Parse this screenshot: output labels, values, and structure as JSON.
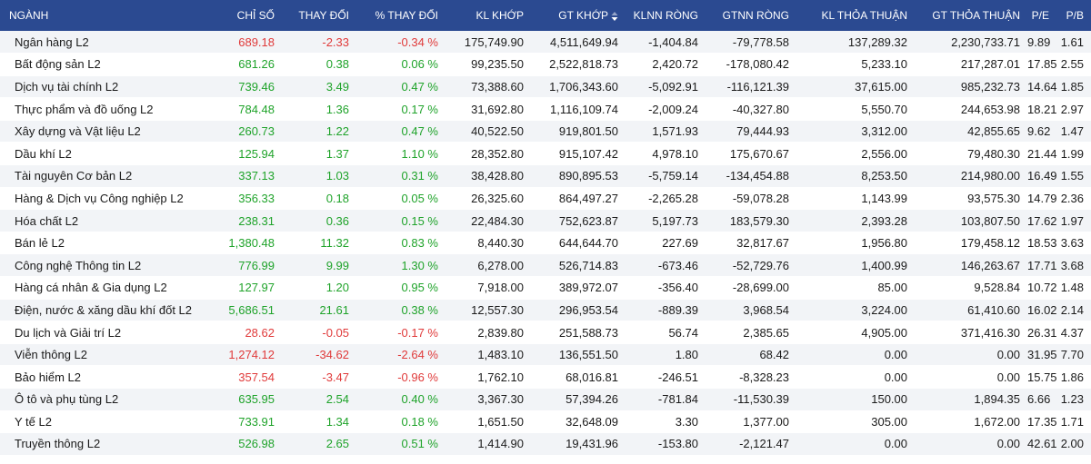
{
  "table": {
    "headers": [
      "NGÀNH",
      "CHỈ SỐ",
      "THAY ĐỔI",
      "% THAY ĐỔI",
      "KL KHỚP",
      "GT KHỚP",
      "KLNN RÒNG",
      "GTNN RÒNG",
      "KL THỎA THUẬN",
      "GT THỎA THUẬN",
      "P/E",
      "P/B"
    ],
    "sort_icon": "sort-desc-icon",
    "colors": {
      "header_bg": "#2b4a91",
      "up": "#1fa32a",
      "down": "#e03a3a"
    },
    "rows": [
      {
        "name": "Ngân hàng L2",
        "index": "689.18",
        "change": "-2.33",
        "pct": "-0.34 %",
        "kl_khop": "175,749.90",
        "gt_khop": "4,511,649.94",
        "klnn": "-1,404.84",
        "gtnn": "-79,778.58",
        "kl_tt": "137,289.32",
        "gt_tt": "2,230,733.71",
        "pe": "9.89",
        "pb": "1.61",
        "trend": "down"
      },
      {
        "name": "Bất động sản L2",
        "index": "681.26",
        "change": "0.38",
        "pct": "0.06 %",
        "kl_khop": "99,235.50",
        "gt_khop": "2,522,818.73",
        "klnn": "2,420.72",
        "gtnn": "-178,080.42",
        "kl_tt": "5,233.10",
        "gt_tt": "217,287.01",
        "pe": "17.85",
        "pb": "2.55",
        "trend": "up"
      },
      {
        "name": "Dịch vụ tài chính L2",
        "index": "739.46",
        "change": "3.49",
        "pct": "0.47 %",
        "kl_khop": "73,388.60",
        "gt_khop": "1,706,343.60",
        "klnn": "-5,092.91",
        "gtnn": "-116,121.39",
        "kl_tt": "37,615.00",
        "gt_tt": "985,232.73",
        "pe": "14.64",
        "pb": "1.85",
        "trend": "up"
      },
      {
        "name": "Thực phẩm và đồ uống L2",
        "index": "784.48",
        "change": "1.36",
        "pct": "0.17 %",
        "kl_khop": "31,692.80",
        "gt_khop": "1,116,109.74",
        "klnn": "-2,009.24",
        "gtnn": "-40,327.80",
        "kl_tt": "5,550.70",
        "gt_tt": "244,653.98",
        "pe": "18.21",
        "pb": "2.97",
        "trend": "up"
      },
      {
        "name": "Xây dựng và Vật liệu L2",
        "index": "260.73",
        "change": "1.22",
        "pct": "0.47 %",
        "kl_khop": "40,522.50",
        "gt_khop": "919,801.50",
        "klnn": "1,571.93",
        "gtnn": "79,444.93",
        "kl_tt": "3,312.00",
        "gt_tt": "42,855.65",
        "pe": "9.62",
        "pb": "1.47",
        "trend": "up"
      },
      {
        "name": "Dầu khí L2",
        "index": "125.94",
        "change": "1.37",
        "pct": "1.10 %",
        "kl_khop": "28,352.80",
        "gt_khop": "915,107.42",
        "klnn": "4,978.10",
        "gtnn": "175,670.67",
        "kl_tt": "2,556.00",
        "gt_tt": "79,480.30",
        "pe": "21.44",
        "pb": "1.99",
        "trend": "up"
      },
      {
        "name": "Tài nguyên Cơ bản L2",
        "index": "337.13",
        "change": "1.03",
        "pct": "0.31 %",
        "kl_khop": "38,428.80",
        "gt_khop": "890,895.53",
        "klnn": "-5,759.14",
        "gtnn": "-134,454.88",
        "kl_tt": "8,253.50",
        "gt_tt": "214,980.00",
        "pe": "16.49",
        "pb": "1.55",
        "trend": "up"
      },
      {
        "name": "Hàng & Dịch vụ Công nghiệp L2",
        "index": "356.33",
        "change": "0.18",
        "pct": "0.05 %",
        "kl_khop": "26,325.60",
        "gt_khop": "864,497.27",
        "klnn": "-2,265.28",
        "gtnn": "-59,078.28",
        "kl_tt": "1,143.99",
        "gt_tt": "93,575.30",
        "pe": "14.79",
        "pb": "2.36",
        "trend": "up"
      },
      {
        "name": "Hóa chất L2",
        "index": "238.31",
        "change": "0.36",
        "pct": "0.15 %",
        "kl_khop": "22,484.30",
        "gt_khop": "752,623.87",
        "klnn": "5,197.73",
        "gtnn": "183,579.30",
        "kl_tt": "2,393.28",
        "gt_tt": "103,807.50",
        "pe": "17.62",
        "pb": "1.97",
        "trend": "up"
      },
      {
        "name": "Bán lẻ L2",
        "index": "1,380.48",
        "change": "11.32",
        "pct": "0.83 %",
        "kl_khop": "8,440.30",
        "gt_khop": "644,644.70",
        "klnn": "227.69",
        "gtnn": "32,817.67",
        "kl_tt": "1,956.80",
        "gt_tt": "179,458.12",
        "pe": "18.53",
        "pb": "3.63",
        "trend": "up"
      },
      {
        "name": "Công nghệ Thông tin L2",
        "index": "776.99",
        "change": "9.99",
        "pct": "1.30 %",
        "kl_khop": "6,278.00",
        "gt_khop": "526,714.83",
        "klnn": "-673.46",
        "gtnn": "-52,729.76",
        "kl_tt": "1,400.99",
        "gt_tt": "146,263.67",
        "pe": "17.71",
        "pb": "3.68",
        "trend": "up"
      },
      {
        "name": "Hàng cá nhân & Gia dụng L2",
        "index": "127.97",
        "change": "1.20",
        "pct": "0.95 %",
        "kl_khop": "7,918.00",
        "gt_khop": "389,972.07",
        "klnn": "-356.40",
        "gtnn": "-28,699.00",
        "kl_tt": "85.00",
        "gt_tt": "9,528.84",
        "pe": "10.72",
        "pb": "1.48",
        "trend": "up"
      },
      {
        "name": "Điện, nước & xăng dầu khí đốt L2",
        "index": "5,686.51",
        "change": "21.61",
        "pct": "0.38 %",
        "kl_khop": "12,557.30",
        "gt_khop": "296,953.54",
        "klnn": "-889.39",
        "gtnn": "3,968.54",
        "kl_tt": "3,224.00",
        "gt_tt": "61,410.60",
        "pe": "16.02",
        "pb": "2.14",
        "trend": "up"
      },
      {
        "name": "Du lịch và Giải trí L2",
        "index": "28.62",
        "change": "-0.05",
        "pct": "-0.17 %",
        "kl_khop": "2,839.80",
        "gt_khop": "251,588.73",
        "klnn": "56.74",
        "gtnn": "2,385.65",
        "kl_tt": "4,905.00",
        "gt_tt": "371,416.30",
        "pe": "26.31",
        "pb": "4.37",
        "trend": "down"
      },
      {
        "name": "Viễn thông L2",
        "index": "1,274.12",
        "change": "-34.62",
        "pct": "-2.64 %",
        "kl_khop": "1,483.10",
        "gt_khop": "136,551.50",
        "klnn": "1.80",
        "gtnn": "68.42",
        "kl_tt": "0.00",
        "gt_tt": "0.00",
        "pe": "31.95",
        "pb": "7.70",
        "trend": "down"
      },
      {
        "name": "Bảo hiểm L2",
        "index": "357.54",
        "change": "-3.47",
        "pct": "-0.96 %",
        "kl_khop": "1,762.10",
        "gt_khop": "68,016.81",
        "klnn": "-246.51",
        "gtnn": "-8,328.23",
        "kl_tt": "0.00",
        "gt_tt": "0.00",
        "pe": "15.75",
        "pb": "1.86",
        "trend": "down"
      },
      {
        "name": "Ô tô và phụ tùng L2",
        "index": "635.95",
        "change": "2.54",
        "pct": "0.40 %",
        "kl_khop": "3,367.30",
        "gt_khop": "57,394.26",
        "klnn": "-781.84",
        "gtnn": "-11,530.39",
        "kl_tt": "150.00",
        "gt_tt": "1,894.35",
        "pe": "6.66",
        "pb": "1.23",
        "trend": "up"
      },
      {
        "name": "Y tế L2",
        "index": "733.91",
        "change": "1.34",
        "pct": "0.18 %",
        "kl_khop": "1,651.50",
        "gt_khop": "32,648.09",
        "klnn": "3.30",
        "gtnn": "1,377.00",
        "kl_tt": "305.00",
        "gt_tt": "1,672.00",
        "pe": "17.35",
        "pb": "1.71",
        "trend": "up"
      },
      {
        "name": "Truyền thông L2",
        "index": "526.98",
        "change": "2.65",
        "pct": "0.51 %",
        "kl_khop": "1,414.90",
        "gt_khop": "19,431.96",
        "klnn": "-153.80",
        "gtnn": "-2,121.47",
        "kl_tt": "0.00",
        "gt_tt": "0.00",
        "pe": "42.61",
        "pb": "2.00",
        "trend": "up"
      }
    ]
  }
}
